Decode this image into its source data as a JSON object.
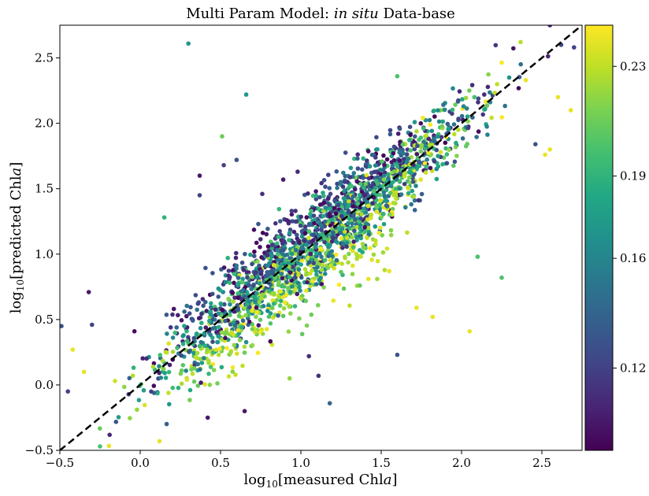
{
  "chart_data": {
    "type": "scatter",
    "title": "Multi Param Model: in situ Data-base",
    "title_parts": {
      "prefix": "Multi Param Model: ",
      "emph": "in situ",
      "suffix": " Data-base"
    },
    "xlabel": "log10[measured Chla]",
    "ylabel": "log10[predicted Chla]",
    "xlabel_parts": {
      "log": "log",
      "sub": "10",
      "open": "[measured Chl",
      "emph": "a",
      "close": "]"
    },
    "ylabel_parts": {
      "log": "log",
      "sub": "10",
      "open": "[predicted Chl",
      "emph": "a",
      "close": "]"
    },
    "xlim": [
      -0.5,
      2.75
    ],
    "ylim": [
      -0.5,
      2.75
    ],
    "xticks": [
      -0.5,
      0.0,
      0.5,
      1.0,
      1.5,
      2.0,
      2.5
    ],
    "xtick_labels": [
      "−0.5",
      "0.0",
      "0.5",
      "1.0",
      "1.5",
      "2.0",
      "2.5"
    ],
    "yticks": [
      -0.5,
      0.0,
      0.5,
      1.0,
      1.5,
      2.0,
      2.5
    ],
    "ytick_labels": [
      "−0.5",
      "0.0",
      "0.5",
      "1.0",
      "1.5",
      "2.0",
      "2.5"
    ],
    "one_to_one_line": {
      "style": "dashed",
      "color": "#000000",
      "from": [
        -0.5,
        -0.5
      ],
      "to": [
        2.75,
        2.75
      ]
    },
    "colorbar": {
      "colormap": "viridis",
      "range": [
        0.09,
        0.245
      ],
      "ticks": [
        0.12,
        0.16,
        0.19,
        0.23
      ],
      "tick_labels": [
        "0.12",
        "0.16",
        "0.19",
        "0.23"
      ]
    },
    "grid": false,
    "legend": "none",
    "points": [
      {
        "x": 0.3,
        "y": 2.61,
        "c": 0.17
      },
      {
        "x": 0.66,
        "y": 2.22,
        "c": 0.17
      },
      {
        "x": 0.6,
        "y": 1.72,
        "c": 0.13
      },
      {
        "x": 0.52,
        "y": 1.68,
        "c": 0.12
      },
      {
        "x": 0.37,
        "y": 1.45,
        "c": 0.12
      },
      {
        "x": 0.37,
        "y": 1.6,
        "c": 0.1
      },
      {
        "x": 0.15,
        "y": 1.28,
        "c": 0.19
      },
      {
        "x": 0.51,
        "y": 1.9,
        "c": 0.21
      },
      {
        "x": 0.76,
        "y": 1.46,
        "c": 0.11
      },
      {
        "x": 0.89,
        "y": 1.57,
        "c": 0.1
      },
      {
        "x": 0.98,
        "y": 1.63,
        "c": 0.11
      },
      {
        "x": 1.42,
        "y": 0.81,
        "c": 0.24
      },
      {
        "x": 1.55,
        "y": 0.87,
        "c": 0.24
      },
      {
        "x": 1.72,
        "y": 0.59,
        "c": 0.24
      },
      {
        "x": 1.82,
        "y": 0.52,
        "c": 0.24
      },
      {
        "x": 2.05,
        "y": 0.41,
        "c": 0.24
      },
      {
        "x": 1.6,
        "y": 0.23,
        "c": 0.13
      },
      {
        "x": 2.1,
        "y": 0.98,
        "c": 0.2
      },
      {
        "x": 2.25,
        "y": 0.82,
        "c": 0.2
      },
      {
        "x": 1.05,
        "y": 0.22,
        "c": 0.11
      },
      {
        "x": 1.18,
        "y": -0.14,
        "c": 0.14
      },
      {
        "x": 2.4,
        "y": 2.33,
        "c": 0.24
      },
      {
        "x": 2.55,
        "y": 1.8,
        "c": 0.24
      },
      {
        "x": 2.6,
        "y": 2.2,
        "c": 0.24
      },
      {
        "x": 2.68,
        "y": 2.1,
        "c": 0.24
      },
      {
        "x": 2.46,
        "y": 1.84,
        "c": 0.13
      },
      {
        "x": 2.52,
        "y": 1.76,
        "c": 0.24
      },
      {
        "x": 2.62,
        "y": 2.6,
        "c": 0.12
      },
      {
        "x": 2.7,
        "y": 2.58,
        "c": 0.12
      },
      {
        "x": 2.55,
        "y": 2.75,
        "c": 0.1
      },
      {
        "x": 2.08,
        "y": 2.2,
        "c": 0.2
      },
      {
        "x": 1.6,
        "y": 2.36,
        "c": 0.2
      },
      {
        "x": -0.49,
        "y": 0.45,
        "c": 0.13
      },
      {
        "x": -0.42,
        "y": 0.27,
        "c": 0.24
      },
      {
        "x": -0.3,
        "y": 0.46,
        "c": 0.12
      },
      {
        "x": -0.32,
        "y": 0.71,
        "c": 0.1
      },
      {
        "x": -0.25,
        "y": -0.47,
        "c": 0.2
      },
      {
        "x": -0.45,
        "y": -0.05,
        "c": 0.12
      },
      {
        "x": -0.35,
        "y": 0.1,
        "c": 0.24
      },
      {
        "x": 0.12,
        "y": -0.43,
        "c": 0.24
      },
      {
        "x": 0.42,
        "y": -0.25,
        "c": 0.1
      },
      {
        "x": 0.65,
        "y": -0.2,
        "c": 0.1
      },
      {
        "x": 0.93,
        "y": 0.05,
        "c": 0.22
      },
      {
        "x": 1.11,
        "y": 0.07,
        "c": 0.11
      }
    ],
    "cloud": {
      "count": 2100,
      "x_range": [
        -0.5,
        2.7
      ],
      "yellow_bias": -0.18,
      "purple_bias": 0.1,
      "noise_sd": 0.16
    }
  }
}
